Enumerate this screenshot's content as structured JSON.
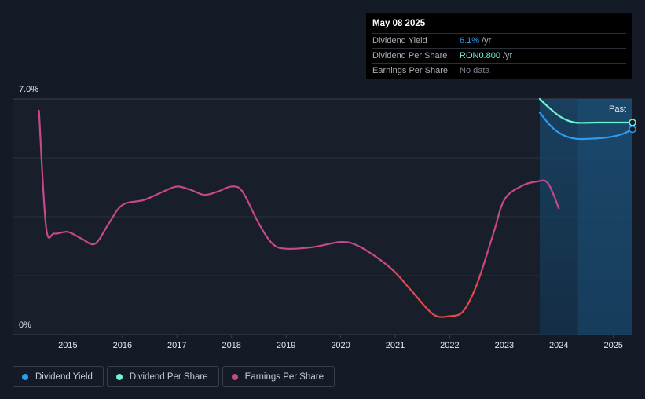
{
  "tooltip": {
    "date": "May 08 2025",
    "rows": [
      {
        "label": "Dividend Yield",
        "value": "6.1%",
        "unit": "/yr"
      },
      {
        "label": "Dividend Per Share",
        "value": "RON0.800",
        "unit": "/yr"
      },
      {
        "label": "Earnings Per Share",
        "value": "No data",
        "unit": ""
      }
    ]
  },
  "chart_data": {
    "type": "line",
    "y_axis_labels": [
      "7.0%",
      "0%"
    ],
    "ylim": [
      0,
      7.0
    ],
    "xlim": [
      2014.0,
      2025.35
    ],
    "x_ticks": [
      "2015",
      "2016",
      "2017",
      "2018",
      "2019",
      "2020",
      "2021",
      "2022",
      "2023",
      "2024",
      "2025"
    ],
    "past_label": "Past",
    "past_region_start": 2023.65,
    "future_region_start": 2024.35,
    "series": [
      {
        "name": "Dividend Yield",
        "color": "#2d9bf0",
        "points": [
          [
            2023.65,
            6.6
          ],
          [
            2023.85,
            6.2
          ],
          [
            2024.05,
            5.95
          ],
          [
            2024.3,
            5.82
          ],
          [
            2024.6,
            5.82
          ],
          [
            2024.9,
            5.86
          ],
          [
            2025.15,
            5.95
          ],
          [
            2025.35,
            6.1
          ]
        ]
      },
      {
        "name": "Dividend Per Share",
        "color": "#6ef5d2",
        "points": [
          [
            2023.65,
            7.0
          ],
          [
            2023.85,
            6.7
          ],
          [
            2024.05,
            6.45
          ],
          [
            2024.3,
            6.3
          ],
          [
            2024.7,
            6.3
          ],
          [
            2025.35,
            6.3
          ]
        ]
      },
      {
        "name": "Earnings Per Share",
        "color": "#c4488a",
        "points": [
          [
            2014.47,
            6.65
          ],
          [
            2014.6,
            3.2
          ],
          [
            2014.75,
            3.0
          ],
          [
            2015.0,
            3.05
          ],
          [
            2015.25,
            2.85
          ],
          [
            2015.5,
            2.7
          ],
          [
            2015.75,
            3.3
          ],
          [
            2016.0,
            3.85
          ],
          [
            2016.4,
            4.0
          ],
          [
            2016.75,
            4.25
          ],
          [
            2017.0,
            4.4
          ],
          [
            2017.25,
            4.3
          ],
          [
            2017.5,
            4.15
          ],
          [
            2017.75,
            4.25
          ],
          [
            2018.0,
            4.4
          ],
          [
            2018.2,
            4.25
          ],
          [
            2018.5,
            3.3
          ],
          [
            2018.75,
            2.7
          ],
          [
            2019.0,
            2.55
          ],
          [
            2019.5,
            2.6
          ],
          [
            2020.0,
            2.75
          ],
          [
            2020.3,
            2.65
          ],
          [
            2020.7,
            2.25
          ],
          [
            2021.0,
            1.85
          ],
          [
            2021.3,
            1.3
          ],
          [
            2021.7,
            0.6
          ],
          [
            2022.0,
            0.55
          ],
          [
            2022.25,
            0.7
          ],
          [
            2022.5,
            1.5
          ],
          [
            2022.8,
            3.0
          ],
          [
            2023.0,
            4.0
          ],
          [
            2023.3,
            4.4
          ],
          [
            2023.6,
            4.55
          ],
          [
            2023.8,
            4.5
          ],
          [
            2024.0,
            3.75
          ]
        ]
      }
    ],
    "legend": [
      {
        "label": "Dividend Yield",
        "color": "#2d9bf0"
      },
      {
        "label": "Dividend Per Share",
        "color": "#6ef5d2"
      },
      {
        "label": "Earnings Per Share",
        "color": "#c4488a"
      }
    ]
  }
}
